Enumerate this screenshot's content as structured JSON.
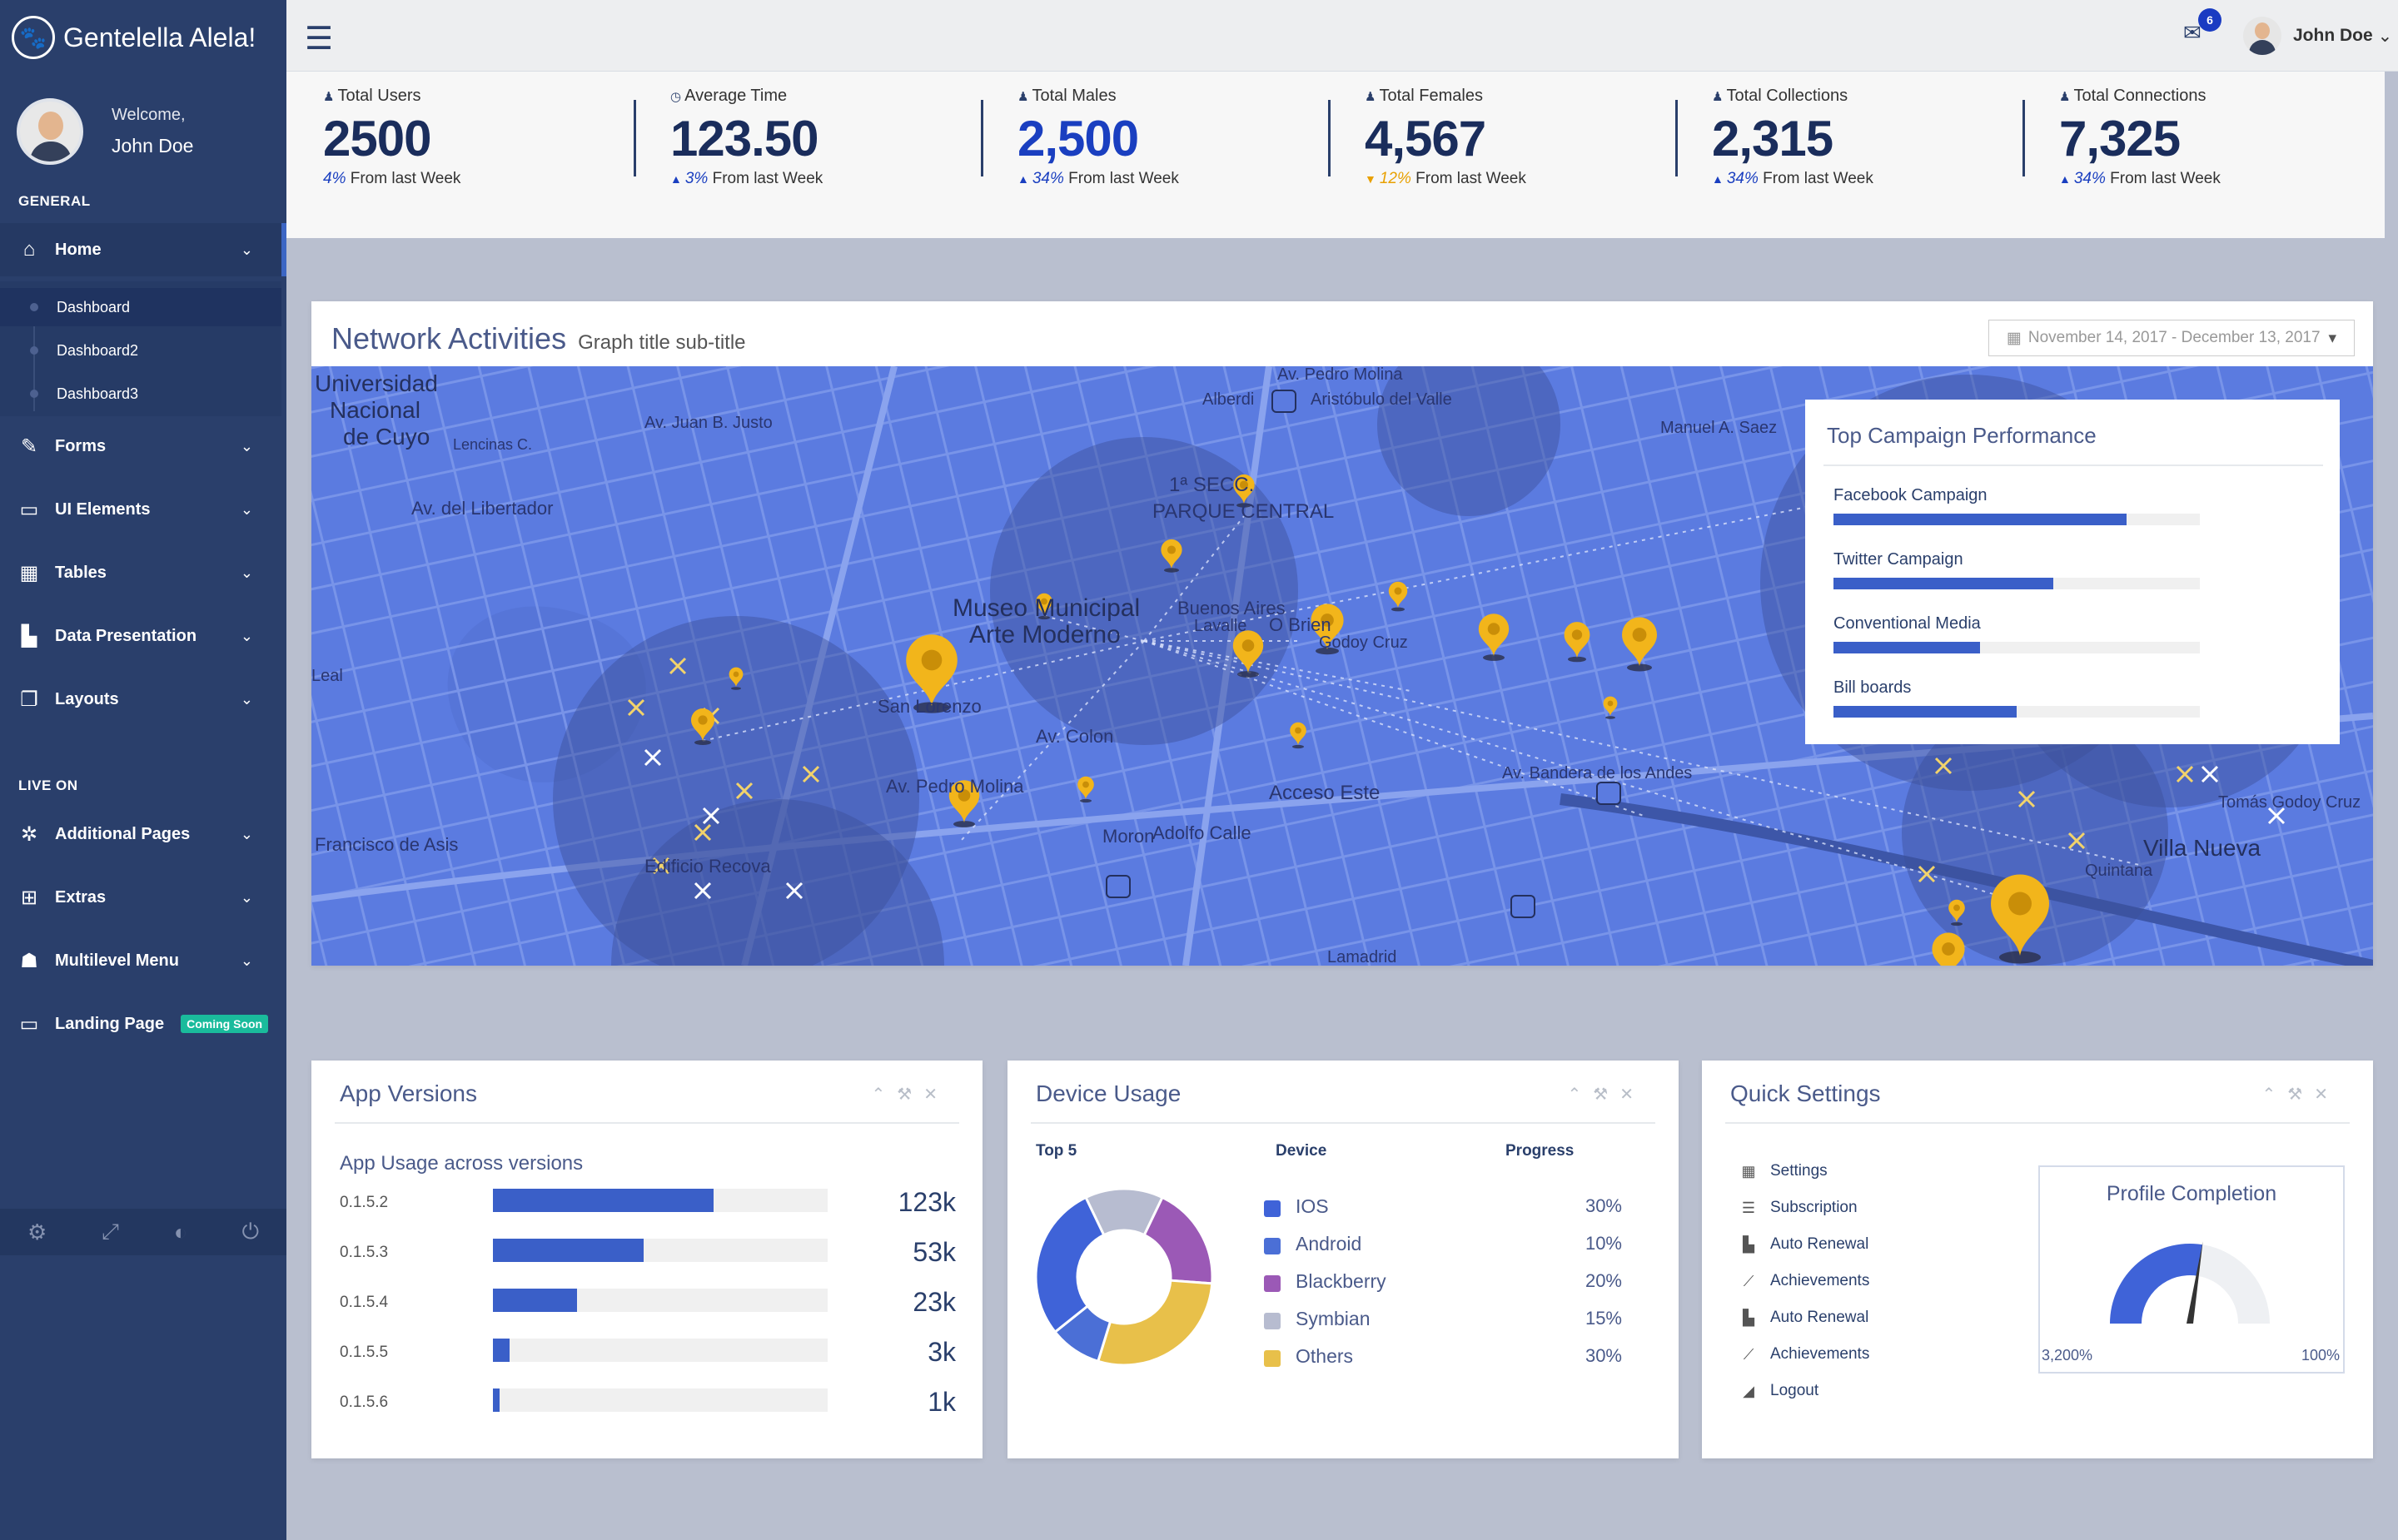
{
  "app": {
    "title": "Gentelella Alela!"
  },
  "sidebar": {
    "welcome": "Welcome,",
    "user": "John Doe",
    "general_title": "GENERAL",
    "live_title": "LIVE ON",
    "items": [
      {
        "label": "Home"
      },
      {
        "label": "Forms"
      },
      {
        "label": "UI Elements"
      },
      {
        "label": "Tables"
      },
      {
        "label": "Data Presentation"
      },
      {
        "label": "Layouts"
      }
    ],
    "sub_items": [
      {
        "label": "Dashboard"
      },
      {
        "label": "Dashboard2"
      },
      {
        "label": "Dashboard3"
      }
    ],
    "live_items": [
      {
        "label": "Additional Pages"
      },
      {
        "label": "Extras"
      },
      {
        "label": "Multilevel Menu"
      },
      {
        "label": "Landing Page",
        "badge": "Coming Soon"
      }
    ]
  },
  "topnav": {
    "mail_count": "6",
    "user": "John Doe"
  },
  "tiles": [
    {
      "label": "Total Users",
      "value": "2500",
      "change": "4%",
      "suffix": "From last Week",
      "arrow": ""
    },
    {
      "label": "Average Time",
      "value": "123.50",
      "change": "3%",
      "suffix": "From last Week",
      "arrow": "▲"
    },
    {
      "label": "Total Males",
      "value": "2,500",
      "change": "34%",
      "suffix": "From last Week",
      "arrow": "▲"
    },
    {
      "label": "Total Females",
      "value": "4,567",
      "change": "12%",
      "suffix": "From last Week",
      "arrow": "▼"
    },
    {
      "label": "Total Collections",
      "value": "2,315",
      "change": "34%",
      "suffix": "From last Week",
      "arrow": "▲"
    },
    {
      "label": "Total Connections",
      "value": "7,325",
      "change": "34%",
      "suffix": "From last Week",
      "arrow": "▲"
    }
  ],
  "network": {
    "title": "Network Activities",
    "subtitle": "Graph title sub-title",
    "date_range": "November 14, 2017 - December 13, 2017",
    "map_labels": [
      {
        "t": "Universidad"
      },
      {
        "t": "Nacional"
      },
      {
        "t": "de Cuyo"
      },
      {
        "t": "Museo Municipal"
      },
      {
        "t": "Arte Moderno"
      },
      {
        "t": "1ª SECC."
      },
      {
        "t": "PARQUE CENTRAL"
      },
      {
        "t": "Acceso Este"
      },
      {
        "t": "Villa Nueva"
      },
      {
        "t": "Edificio Recova"
      },
      {
        "t": "Av. Pedro Molina"
      },
      {
        "t": "Adolfo Calle"
      },
      {
        "t": "San Lorenzo"
      },
      {
        "t": "Av. Colon"
      },
      {
        "t": "Av. Juan B. Justo"
      },
      {
        "t": "Av. del Libertador"
      },
      {
        "t": "Av. Bandera de los Andes"
      },
      {
        "t": "Lencinas C."
      },
      {
        "t": "Francisco de Asis"
      },
      {
        "t": "Moron"
      },
      {
        "t": "Buenos Aires"
      },
      {
        "t": "Lavalle"
      },
      {
        "t": "O Brien"
      },
      {
        "t": "Godoy Cruz"
      },
      {
        "t": "Leal"
      },
      {
        "t": "Alberdi"
      },
      {
        "t": "Aristóbulo del Valle"
      },
      {
        "t": "Av. Pedro Molina"
      },
      {
        "t": "Lamadrid"
      },
      {
        "t": "Quintana"
      },
      {
        "t": "Tomás Godoy Cruz"
      },
      {
        "t": "Manuel A. Saez"
      }
    ],
    "campaign": {
      "title": "Top Campaign Performance",
      "items": [
        {
          "label": "Facebook Campaign",
          "percent": 80
        },
        {
          "label": "Twitter Campaign",
          "percent": 60
        },
        {
          "label": "Conventional Media",
          "percent": 40
        },
        {
          "label": "Bill boards",
          "percent": 50
        }
      ]
    }
  },
  "app_versions": {
    "title": "App Versions",
    "subtitle": "App Usage across versions",
    "rows": [
      {
        "version": "0.1.5.2",
        "value": "123k",
        "percent": 66
      },
      {
        "version": "0.1.5.3",
        "value": "53k",
        "percent": 45
      },
      {
        "version": "0.1.5.4",
        "value": "23k",
        "percent": 25
      },
      {
        "version": "0.1.5.5",
        "value": "3k",
        "percent": 5
      },
      {
        "version": "0.1.5.6",
        "value": "1k",
        "percent": 2
      }
    ]
  },
  "device_usage": {
    "title": "Device Usage",
    "col_top": "Top 5",
    "col_device": "Device",
    "col_progress": "Progress",
    "rows": [
      {
        "name": "IOS",
        "percent": "30%",
        "color": "#3f63d8",
        "share": 30
      },
      {
        "name": "Android",
        "percent": "10%",
        "color": "#4b6fd6",
        "share": 10
      },
      {
        "name": "Blackberry",
        "percent": "20%",
        "color": "#9b59b6",
        "share": 20
      },
      {
        "name": "Symbian",
        "percent": "15%",
        "color": "#b7bcd0",
        "share": 15
      },
      {
        "name": "Others",
        "percent": "30%",
        "color": "#e8c04a",
        "share": 30
      }
    ]
  },
  "quick_settings": {
    "title": "Quick Settings",
    "items": [
      {
        "label": "Settings",
        "icon": "calendar-icon"
      },
      {
        "label": "Subscription",
        "icon": "list-icon"
      },
      {
        "label": "Auto Renewal",
        "icon": "bar-chart-icon"
      },
      {
        "label": "Achievements",
        "icon": "line-chart-icon"
      },
      {
        "label": "Auto Renewal",
        "icon": "bar-chart-icon"
      },
      {
        "label": "Achievements",
        "icon": "line-chart-icon"
      },
      {
        "label": "Logout",
        "icon": "area-chart-icon"
      }
    ],
    "profile": {
      "title": "Profile Completion",
      "min_label": "3,200%",
      "max_label": "100%",
      "level": 0.55
    }
  },
  "colors": {
    "sidebar": "#2a3f6b",
    "accent": "#3a5fc8",
    "map": "#5b7be0",
    "pin": "#f2b51b"
  }
}
